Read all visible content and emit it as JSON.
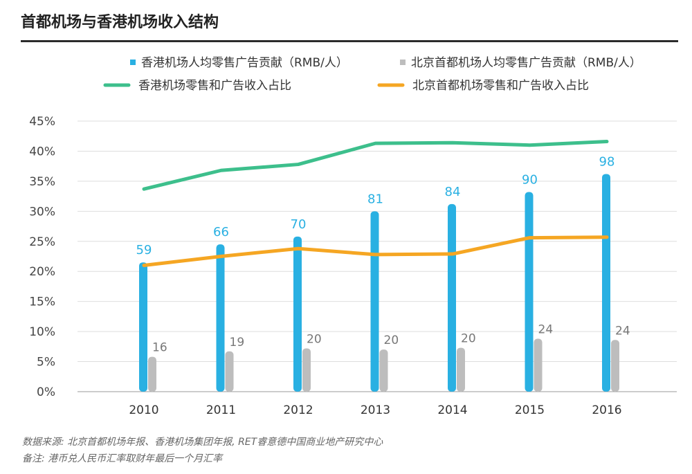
{
  "title": "首都机场与香港机场收入结构",
  "chart_data": {
    "type": "bar",
    "categories": [
      "2010",
      "2011",
      "2012",
      "2013",
      "2014",
      "2015",
      "2016"
    ],
    "yaxis": {
      "ylim": [
        0,
        45
      ],
      "unit": "%",
      "ticks": [
        "0%",
        "5%",
        "10%",
        "15%",
        "20%",
        "25%",
        "30%",
        "35%",
        "40%",
        "45%"
      ]
    },
    "grid": true,
    "legend_position": "top",
    "bar_series": [
      {
        "name": "香港机场人均零售广告贡献（RMB/人）",
        "color": "#29b0e2",
        "data_labels": [
          59,
          66,
          70,
          81,
          84,
          90,
          98
        ],
        "values_pct_axis": [
          21.5,
          24.5,
          25.8,
          30.0,
          31.2,
          33.2,
          36.2
        ]
      },
      {
        "name": "北京首都机场人均零售广告贡献（RMB/人）",
        "color": "#bdbdbd",
        "data_labels": [
          16,
          19,
          20,
          20,
          20,
          24,
          24
        ],
        "values_pct_axis": [
          5.8,
          6.7,
          7.2,
          7.0,
          7.3,
          8.8,
          8.6
        ]
      }
    ],
    "line_series": [
      {
        "name": "香港机场零售和广告收入占比",
        "color": "#3dbf8c",
        "values": [
          33.7,
          36.8,
          37.8,
          41.3,
          41.4,
          41.0,
          41.6
        ]
      },
      {
        "name": "北京首都机场零售和广告收入占比",
        "color": "#f5a623",
        "values": [
          21.0,
          22.5,
          23.8,
          22.8,
          22.9,
          25.6,
          25.7
        ]
      }
    ]
  },
  "notes": {
    "source": "数据来源: 北京首都机场年报、香港机场集团年报, RET睿意德中国商业地产研究中心",
    "remark": "备注: 港币兑人民币汇率取财年最后一个月汇率"
  }
}
